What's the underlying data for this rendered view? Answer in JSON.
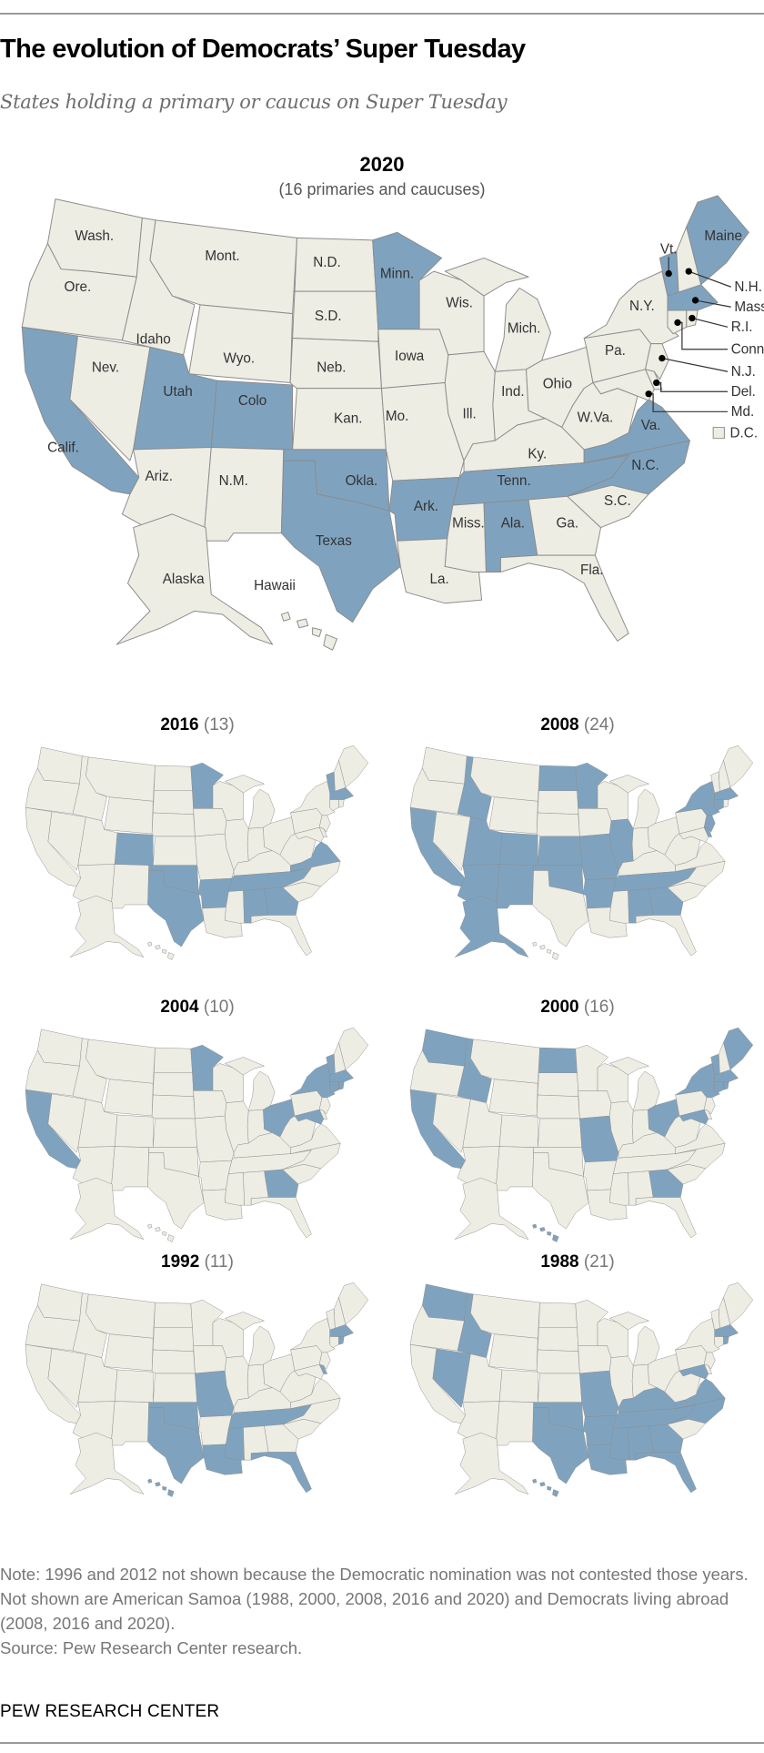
{
  "title": "The evolution of Democrats’ Super Tuesday",
  "subtitle": "States holding a primary or caucus on Super Tuesday",
  "colors": {
    "highlight": "#7fa3bf",
    "other": "#eeede4",
    "border": "#8c8c8c"
  },
  "main_map": {
    "year": "2020",
    "caption": "(16 primaries and caucuses)",
    "states": [
      "AL",
      "AR",
      "CA",
      "CO",
      "ME",
      "MA",
      "MN",
      "NC",
      "OK",
      "TN",
      "TX",
      "UT",
      "VT",
      "VA"
    ],
    "labels": {
      "WA": "Wash.",
      "OR": "Ore.",
      "CA": "Calif.",
      "NV": "Nev.",
      "ID": "Idaho",
      "MT": "Mont.",
      "WY": "Wyo.",
      "UT": "Utah",
      "CO": "Colo",
      "AZ": "Ariz.",
      "NM": "N.M.",
      "ND": "N.D.",
      "SD": "S.D.",
      "NE": "Neb.",
      "KS": "Kan.",
      "OK": "Okla.",
      "TX": "Texas",
      "MN": "Minn.",
      "IA": "Iowa",
      "MO": "Mo.",
      "AR": "Ark.",
      "LA": "La.",
      "WI": "Wis.",
      "IL": "Ill.",
      "MI": "Mich.",
      "IN": "Ind.",
      "OH": "Ohio",
      "KY": "Ky.",
      "TN": "Tenn.",
      "MS": "Miss.",
      "AL": "Ala.",
      "GA": "Ga.",
      "FL": "Fla.",
      "SC": "S.C.",
      "NC": "N.C.",
      "VA": "Va.",
      "WV": "W.Va.",
      "PA": "Pa.",
      "NY": "N.Y.",
      "ME": "Maine",
      "AK": "Alaska",
      "HI": "Hawaii"
    },
    "callouts": {
      "VT": "Vt.",
      "NH": "N.H.",
      "MA": "Mass.",
      "RI": "R.I.",
      "CT": "Conn.",
      "NJ": "N.J.",
      "DE": "Del.",
      "MD": "Md.",
      "DC": "D.C."
    }
  },
  "small_maps": [
    {
      "year": "2016",
      "count": "(13)",
      "states": [
        "AL",
        "AR",
        "CO",
        "GA",
        "MA",
        "MN",
        "OK",
        "TN",
        "TX",
        "VT",
        "VA"
      ]
    },
    {
      "year": "2008",
      "count": "(24)",
      "states": [
        "AL",
        "AK",
        "AZ",
        "AR",
        "CA",
        "CO",
        "CT",
        "DE",
        "GA",
        "ID",
        "IL",
        "KS",
        "MA",
        "MN",
        "MO",
        "NJ",
        "NM",
        "NY",
        "ND",
        "OK",
        "TN",
        "UT"
      ]
    },
    {
      "year": "2004",
      "count": "(10)",
      "states": [
        "CA",
        "CT",
        "GA",
        "MD",
        "MA",
        "MN",
        "NY",
        "OH",
        "RI",
        "VT"
      ]
    },
    {
      "year": "2000",
      "count": "(16)",
      "states": [
        "CA",
        "CT",
        "GA",
        "HI",
        "ID",
        "ME",
        "MD",
        "MA",
        "MO",
        "NY",
        "ND",
        "OH",
        "RI",
        "VT",
        "WA"
      ]
    },
    {
      "year": "1992",
      "count": "(11)",
      "states": [
        "DE",
        "FL",
        "HI",
        "LA",
        "MA",
        "MS",
        "MO",
        "OK",
        "RI",
        "TN",
        "TX"
      ]
    },
    {
      "year": "1988",
      "count": "(21)",
      "states": [
        "AL",
        "AR",
        "FL",
        "GA",
        "HI",
        "ID",
        "KY",
        "LA",
        "MD",
        "MA",
        "MS",
        "MO",
        "NV",
        "NC",
        "OK",
        "RI",
        "TN",
        "TX",
        "VA",
        "WA"
      ]
    }
  ],
  "note": "Note: 1996 and 2012 not shown because the Democratic nomination was not contested those years. Not shown are American Samoa (1988, 2000, 2008, 2016 and 2020) and Democrats living abroad (2008, 2016 and 2020).",
  "source": "Source: Pew Research Center research.",
  "brand": "PEW RESEARCH CENTER"
}
